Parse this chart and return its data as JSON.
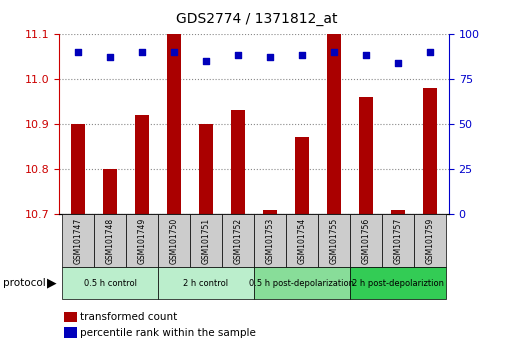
{
  "title": "GDS2774 / 1371812_at",
  "samples": [
    "GSM101747",
    "GSM101748",
    "GSM101749",
    "GSM101750",
    "GSM101751",
    "GSM101752",
    "GSM101753",
    "GSM101754",
    "GSM101755",
    "GSM101756",
    "GSM101757",
    "GSM101759"
  ],
  "red_values": [
    10.9,
    10.8,
    10.92,
    11.13,
    10.9,
    10.93,
    10.71,
    10.87,
    11.13,
    10.96,
    10.71,
    10.98
  ],
  "blue_values_pct": [
    90,
    87,
    90,
    90,
    85,
    88,
    87,
    88,
    90,
    88,
    84,
    90
  ],
  "ylim_left": [
    10.7,
    11.1
  ],
  "ylim_right": [
    0,
    100
  ],
  "yticks_left": [
    10.7,
    10.8,
    10.9,
    11.0,
    11.1
  ],
  "yticks_right": [
    0,
    25,
    50,
    75,
    100
  ],
  "protocols": [
    {
      "label": "0.5 h control",
      "start": 0,
      "end": 3,
      "color": "#bbeecc"
    },
    {
      "label": "2 h control",
      "start": 3,
      "end": 6,
      "color": "#bbeecc"
    },
    {
      "label": "0.5 h post-depolarization",
      "start": 6,
      "end": 9,
      "color": "#88dd99"
    },
    {
      "label": "2 h post-depolariztion",
      "start": 9,
      "end": 12,
      "color": "#33cc55"
    }
  ],
  "bar_color": "#aa0000",
  "dot_color": "#0000bb",
  "grid_color": "#888888",
  "bg_color": "#ffffff",
  "left_tick_color": "#cc0000",
  "right_tick_color": "#0000cc",
  "sample_bg": "#cccccc",
  "bar_width": 0.45
}
